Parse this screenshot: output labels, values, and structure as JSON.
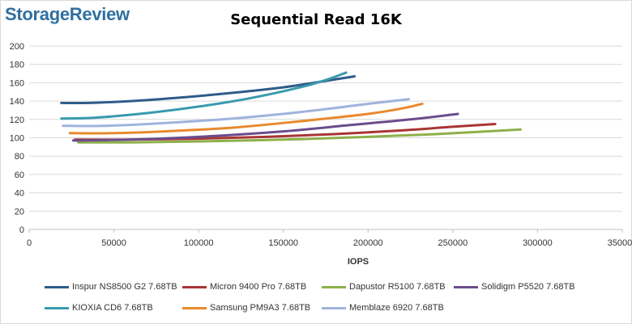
{
  "brand": {
    "logo_text": "StorageReview"
  },
  "chart_data": {
    "type": "line",
    "title": "Sequential Read 16K",
    "xlabel": "IOPS",
    "ylabel": "",
    "xlim": [
      0,
      350000
    ],
    "ylim": [
      0,
      200
    ],
    "xticks": [
      0,
      50000,
      100000,
      150000,
      200000,
      250000,
      300000,
      350000
    ],
    "yticks": [
      0,
      20,
      40,
      60,
      80,
      100,
      120,
      140,
      160,
      180,
      200
    ],
    "grid": true,
    "legend_position": "bottom",
    "series": [
      {
        "name": "Inspur NS8500 G2 7.68TB",
        "color": "#2e5c8a",
        "x": [
          19000,
          35000,
          60000,
          90000,
          120000,
          150000,
          175000,
          192000
        ],
        "y": [
          138,
          138,
          140,
          144,
          149,
          155,
          162,
          167
        ]
      },
      {
        "name": "Micron 9400 Pro 7.68TB",
        "color": "#a93535",
        "x": [
          27000,
          60000,
          100000,
          140000,
          180000,
          220000,
          250000,
          275000
        ],
        "y": [
          98,
          98,
          99,
          101,
          104,
          108,
          112,
          115
        ]
      },
      {
        "name": "Dapustor R5100 7.68TB",
        "color": "#8db04a",
        "x": [
          29000,
          60000,
          100000,
          150000,
          200000,
          240000,
          270000,
          290000
        ],
        "y": [
          95,
          95,
          96,
          98,
          101,
          104,
          107,
          109
        ]
      },
      {
        "name": "Solidigm P5520 7.68TB",
        "color": "#6b4c8c",
        "x": [
          26000,
          60000,
          100000,
          150000,
          190000,
          225000,
          253000
        ],
        "y": [
          97,
          98,
          101,
          107,
          114,
          120,
          126
        ]
      },
      {
        "name": "KIOXIA CD6 7.68TB",
        "color": "#3a9aaf",
        "x": [
          19000,
          40000,
          70000,
          100000,
          130000,
          160000,
          175000,
          187000
        ],
        "y": [
          121,
          122,
          127,
          134,
          143,
          155,
          163,
          171
        ]
      },
      {
        "name": "Samsung PM9A3 7.68TB",
        "color": "#e8892e",
        "x": [
          24000,
          50000,
          80000,
          120000,
          160000,
          200000,
          220000,
          232000
        ],
        "y": [
          105,
          105,
          107,
          111,
          118,
          126,
          132,
          137
        ]
      },
      {
        "name": "Memblaze 6920 7.68TB",
        "color": "#9fb3dd",
        "x": [
          20000,
          45000,
          80000,
          120000,
          160000,
          200000,
          224000
        ],
        "y": [
          113,
          113,
          116,
          121,
          128,
          137,
          142
        ]
      }
    ]
  }
}
